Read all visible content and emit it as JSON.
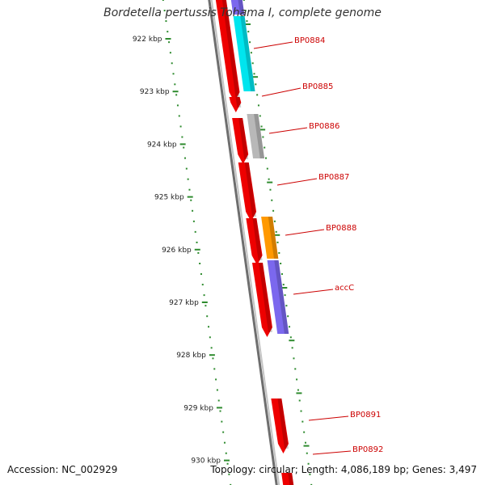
{
  "title": "Bordetella pertussis Tohama I, complete genome",
  "footer": {
    "accession": "Accession: NC_002929",
    "summary": "Topology: circular; Length: 4,086,189 bp; Genes: 3,497"
  },
  "colors": {
    "backbone": "#8a8a8a",
    "tick": "#2e8b2e",
    "label": "#cc0000",
    "red": "#ee0000",
    "cyan": "#00e5ee",
    "purple": "#7b68ee",
    "grey": "#b8b8b8",
    "orange": "#ff9900"
  },
  "scale_ticks": [
    {
      "label": "922 kbp"
    },
    {
      "label": "923 kbp"
    },
    {
      "label": "924 kbp"
    },
    {
      "label": "925 kbp"
    },
    {
      "label": "926 kbp"
    },
    {
      "label": "927 kbp"
    },
    {
      "label": "928 kbp"
    },
    {
      "label": "929 kbp"
    },
    {
      "label": "930 kbp"
    }
  ],
  "gene_labels": [
    "BP0884",
    "BP0885",
    "BP0886",
    "BP0887",
    "BP0888",
    "accC",
    "BP0891",
    "BP0892"
  ],
  "features": [
    {
      "track": "inner",
      "color": "red",
      "arrow": true
    },
    {
      "track": "inner",
      "color": "red",
      "arrow": true
    },
    {
      "track": "inner",
      "color": "red",
      "arrow": true
    },
    {
      "track": "inner",
      "color": "red",
      "arrow": true
    },
    {
      "track": "inner",
      "color": "red",
      "arrow": true
    },
    {
      "track": "inner",
      "color": "red",
      "arrow": true
    },
    {
      "track": "inner",
      "color": "red",
      "arrow": true
    },
    {
      "track": "inner",
      "color": "red",
      "arrow": false
    },
    {
      "track": "outer",
      "color": "purple",
      "arrow": false
    },
    {
      "track": "outer",
      "color": "cyan",
      "arrow": false
    },
    {
      "track": "outer",
      "color": "grey",
      "arrow": false
    },
    {
      "track": "outer",
      "color": "orange",
      "arrow": false
    },
    {
      "track": "outer",
      "color": "purple",
      "arrow": false
    }
  ]
}
